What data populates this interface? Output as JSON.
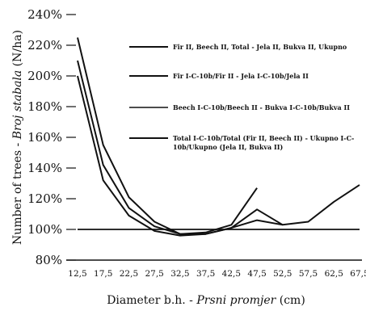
{
  "chart_data": {
    "type": "line",
    "x": [
      "12,5",
      "17,5",
      "22,5",
      "27,5",
      "32,5",
      "37,5",
      "42,5",
      "47,5",
      "52,5",
      "57,5",
      "62,5",
      "67,5"
    ],
    "ylim": [
      80,
      240
    ],
    "yticks": [
      "80%",
      "100%",
      "120%",
      "140%",
      "160%",
      "180%",
      "200%",
      "220%",
      "240%"
    ],
    "xlabel_prefix": "Diameter b.h. - ",
    "xlabel_italic": "Prsni promjer",
    "xlabel_suffix": " (cm)",
    "ylabel_prefix": "Number of trees - ",
    "ylabel_italic": "Broj stabala",
    "ylabel_suffix": " (N/ha)",
    "reference_line": 100,
    "series": [
      {
        "name": "Fir II, Beech II, Total - Jela II, Bukva II, Ukupno",
        "values": [
          100,
          100,
          100,
          100,
          100,
          100,
          100,
          100,
          100,
          100,
          100,
          100
        ],
        "style": "solid"
      },
      {
        "name": "Fir I-C-10b/Fir II - Jela I-C-10b/Jela II",
        "values": [
          225,
          155,
          121,
          105,
          97,
          98,
          103,
          127,
          null,
          null,
          null,
          null
        ],
        "style": "solid"
      },
      {
        "name": "Beech I-C-10b/Beech II - Bukva I-C-10b/Bukva II",
        "values": [
          210,
          142,
          114,
          102,
          97,
          97,
          101,
          113,
          103,
          105,
          118,
          129
        ],
        "style": "solid"
      },
      {
        "name": "Total I-C-10b/Total (Fir II, Beech II) - Ukupno I-C-10b/Ukupno (Jela II, Bukva II)",
        "values": [
          200,
          132,
          109,
          99,
          96,
          97,
          101,
          106,
          103,
          null,
          null,
          null
        ],
        "style": "solid"
      }
    ],
    "legend_lines": [
      [
        "Fir II, Beech II, Total - Jela II, Bukva II, Ukupno"
      ],
      [
        "Fir I-C-10b/Fir II - Jela I-C-10b/Jela II"
      ],
      [
        "Beech I-C-10b/Beech II - Bukva I-C-10b/Bukva II"
      ],
      [
        "Total I-C-10b/Total (Fir II, Beech II) - Ukupno I-C-",
        "10b/Ukupno (Jela II, Bukva II)"
      ]
    ]
  }
}
